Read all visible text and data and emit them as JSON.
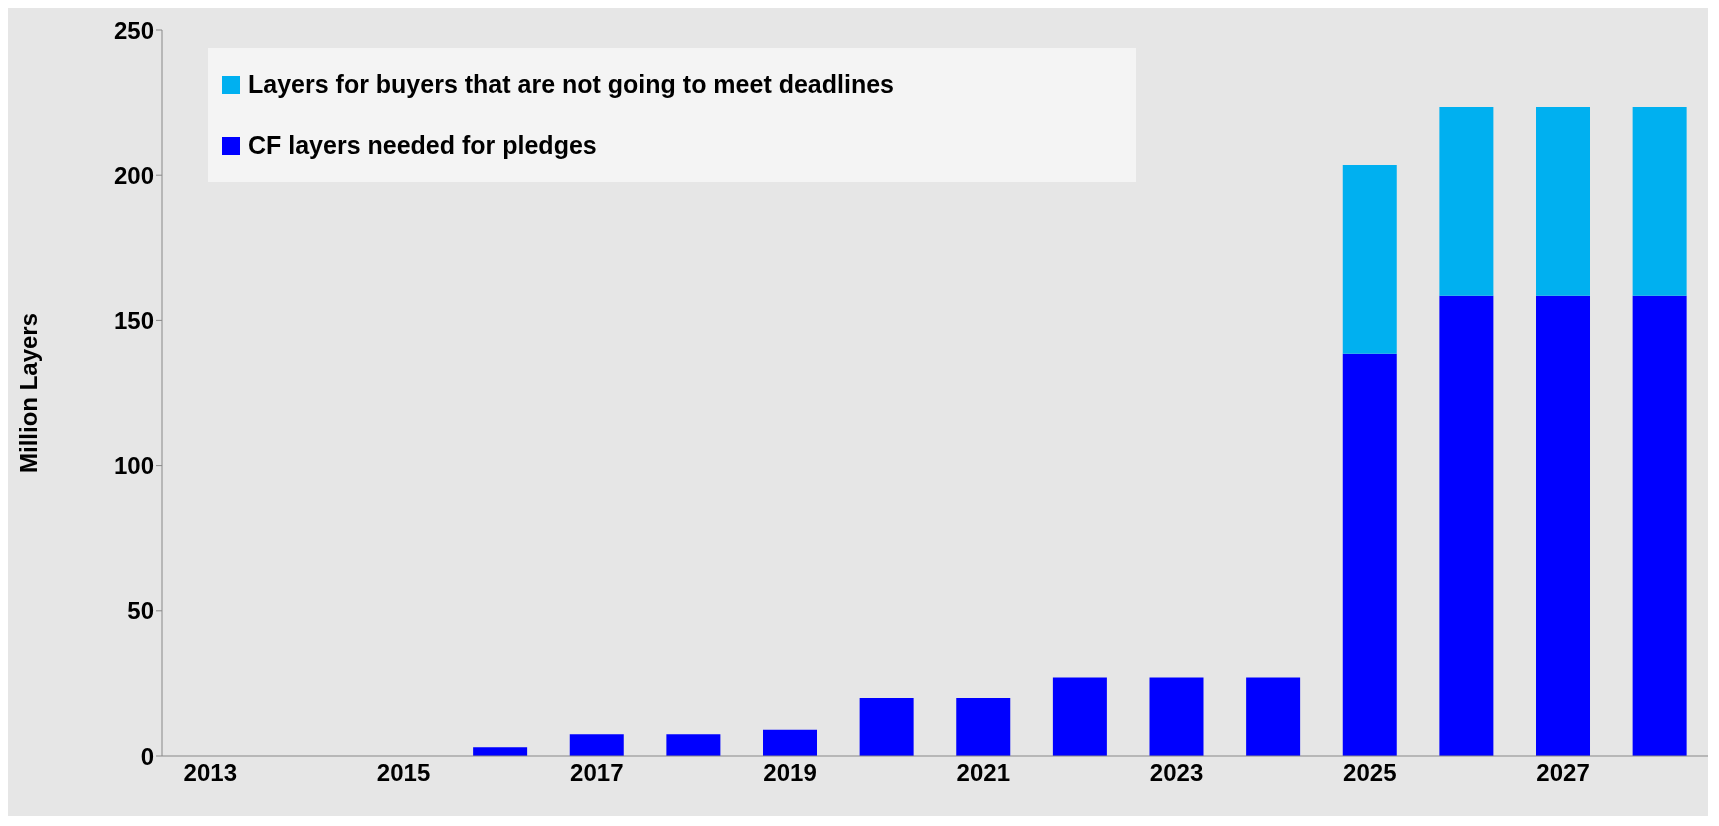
{
  "chart_data": {
    "type": "bar",
    "stacked": true,
    "ylabel": "Million Layers",
    "categories": [
      "2013",
      null,
      "2015",
      null,
      "2017",
      null,
      "2019",
      null,
      "2021",
      null,
      "2023",
      null,
      "2025",
      null,
      "2027",
      null
    ],
    "series": [
      {
        "name": "CF layers needed for pledges",
        "color": "#0000ff",
        "values": [
          0,
          0,
          0,
          3,
          7.5,
          7.5,
          9,
          20,
          20,
          27,
          27,
          27,
          138.5,
          158.5,
          158.5,
          158.5
        ]
      },
      {
        "name": "Layers for buyers that are not going to meet deadlines",
        "color": "#00b0f0",
        "values": [
          0,
          0,
          0,
          0,
          0,
          0,
          0,
          0,
          0,
          0,
          0,
          0,
          65,
          65,
          65,
          65
        ]
      }
    ],
    "ylim": [
      0,
      250
    ],
    "yticks": [
      0,
      50,
      100,
      150,
      200,
      250
    ],
    "legend": "top left"
  }
}
